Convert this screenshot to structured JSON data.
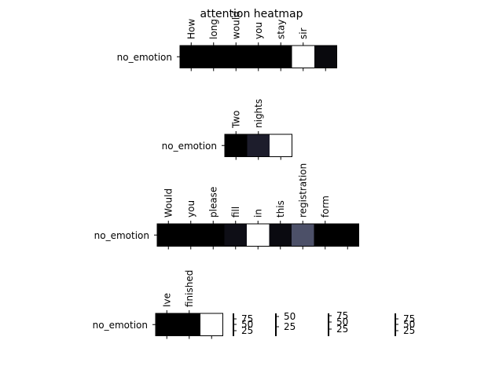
{
  "chart_data": {
    "type": "heatmap",
    "title": "attention heatmap",
    "colormap": [
      "#000000",
      "#30304a",
      "#7f8aa0",
      "#ffffff"
    ],
    "rows": [
      {
        "row_label": "no_emotion",
        "tokens": [
          "How",
          "long",
          "would",
          "you",
          "stay",
          "sir"
        ],
        "values": [
          0.0,
          0.0,
          0.0,
          0.0,
          0.0,
          1.0,
          0.06
        ]
      },
      {
        "row_label": "no_emotion",
        "tokens": [
          "Two",
          "nights"
        ],
        "values": [
          0.0,
          0.2,
          1.0
        ]
      },
      {
        "row_label": "no_emotion",
        "tokens": [
          "Would",
          "you",
          "please",
          "fill",
          "in",
          "this",
          "registration",
          "form"
        ],
        "values": [
          0.0,
          0.0,
          0.0,
          0.1,
          1.0,
          0.07,
          0.45,
          0.0,
          0.0
        ]
      },
      {
        "row_label": "no_emotion",
        "tokens": [
          "Ive",
          "finished"
        ],
        "values": [
          0.0,
          0.0,
          1.0
        ]
      }
    ],
    "colorbars": [
      {
        "tick_labels": [
          "75",
          "50",
          "25"
        ]
      },
      {
        "tick_labels": [
          "50",
          "25"
        ]
      },
      {
        "tick_labels": [
          "75",
          "50",
          "25"
        ]
      },
      {
        "tick_labels": [
          "75",
          "50",
          "25"
        ]
      }
    ]
  }
}
